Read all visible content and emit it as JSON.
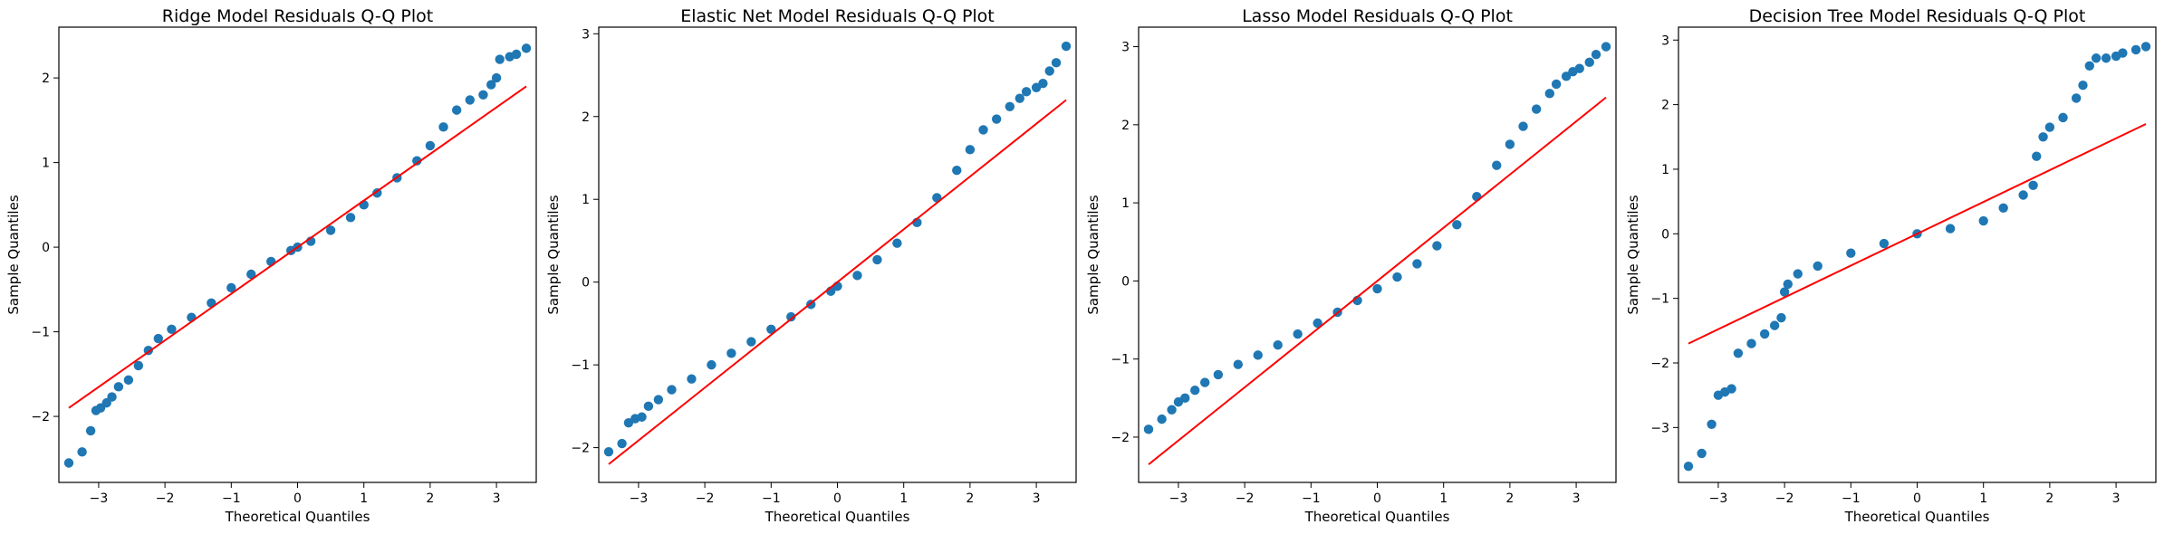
{
  "colors": {
    "points": "#1f77b4",
    "reference_line": "#ff0000",
    "axes": "#000000"
  },
  "chart_data": [
    {
      "type": "scatter",
      "title": "Ridge Model Residuals Q-Q Plot",
      "xlabel": "Theoretical Quantiles",
      "ylabel": "Sample Quantiles",
      "xlim": [
        -3.6,
        3.6
      ],
      "ylim": [
        -2.78,
        2.6
      ],
      "xticks": [
        -3,
        -2,
        -1,
        0,
        1,
        2,
        3
      ],
      "yticks": [
        -2,
        -1,
        0,
        1,
        2
      ],
      "grid": false,
      "reference_line": {
        "x": [
          -3.45,
          3.45
        ],
        "y": [
          -1.9,
          1.9
        ]
      },
      "quantile_points": [
        [
          -3.45,
          -2.55
        ],
        [
          -3.25,
          -2.42
        ],
        [
          -3.12,
          -2.17
        ],
        [
          -3.04,
          -1.93
        ],
        [
          -2.97,
          -1.9
        ],
        [
          -2.88,
          -1.84
        ],
        [
          -2.8,
          -1.77
        ],
        [
          -2.7,
          -1.65
        ],
        [
          -2.55,
          -1.57
        ],
        [
          -2.4,
          -1.4
        ],
        [
          -2.25,
          -1.22
        ],
        [
          -2.1,
          -1.08
        ],
        [
          -1.9,
          -0.97
        ],
        [
          -1.6,
          -0.83
        ],
        [
          -1.3,
          -0.66
        ],
        [
          -1.0,
          -0.48
        ],
        [
          -0.7,
          -0.32
        ],
        [
          -0.4,
          -0.17
        ],
        [
          -0.1,
          -0.04
        ],
        [
          0.0,
          0.0
        ],
        [
          0.2,
          0.07
        ],
        [
          0.5,
          0.2
        ],
        [
          0.8,
          0.35
        ],
        [
          1.0,
          0.5
        ],
        [
          1.2,
          0.64
        ],
        [
          1.5,
          0.82
        ],
        [
          1.8,
          1.02
        ],
        [
          2.0,
          1.2
        ],
        [
          2.2,
          1.42
        ],
        [
          2.4,
          1.62
        ],
        [
          2.6,
          1.74
        ],
        [
          2.8,
          1.8
        ],
        [
          2.92,
          1.92
        ],
        [
          3.0,
          2.0
        ],
        [
          3.05,
          2.22
        ],
        [
          3.2,
          2.25
        ],
        [
          3.3,
          2.28
        ],
        [
          3.45,
          2.35
        ]
      ]
    },
    {
      "type": "scatter",
      "title": "Elastic Net Model Residuals Q-Q Plot",
      "xlabel": "Theoretical Quantiles",
      "ylabel": "Sample Quantiles",
      "xlim": [
        -3.6,
        3.6
      ],
      "ylim": [
        -2.42,
        3.08
      ],
      "xticks": [
        -3,
        -2,
        -1,
        0,
        1,
        2,
        3
      ],
      "yticks": [
        -2,
        -1,
        0,
        1,
        2,
        3
      ],
      "grid": false,
      "reference_line": {
        "x": [
          -3.45,
          3.45
        ],
        "y": [
          -2.2,
          2.2
        ]
      },
      "quantile_points": [
        [
          -3.45,
          -2.05
        ],
        [
          -3.25,
          -1.95
        ],
        [
          -3.15,
          -1.7
        ],
        [
          -3.05,
          -1.65
        ],
        [
          -2.95,
          -1.63
        ],
        [
          -2.85,
          -1.5
        ],
        [
          -2.7,
          -1.42
        ],
        [
          -2.5,
          -1.3
        ],
        [
          -2.2,
          -1.17
        ],
        [
          -1.9,
          -1.0
        ],
        [
          -1.6,
          -0.86
        ],
        [
          -1.3,
          -0.72
        ],
        [
          -1.0,
          -0.57
        ],
        [
          -0.7,
          -0.42
        ],
        [
          -0.4,
          -0.27
        ],
        [
          -0.1,
          -0.11
        ],
        [
          0.0,
          -0.05
        ],
        [
          0.3,
          0.08
        ],
        [
          0.6,
          0.27
        ],
        [
          0.9,
          0.47
        ],
        [
          1.2,
          0.72
        ],
        [
          1.5,
          1.02
        ],
        [
          1.8,
          1.35
        ],
        [
          2.0,
          1.6
        ],
        [
          2.2,
          1.84
        ],
        [
          2.4,
          1.97
        ],
        [
          2.6,
          2.12
        ],
        [
          2.75,
          2.22
        ],
        [
          2.85,
          2.3
        ],
        [
          3.0,
          2.35
        ],
        [
          3.1,
          2.4
        ],
        [
          3.2,
          2.55
        ],
        [
          3.3,
          2.65
        ],
        [
          3.45,
          2.85
        ]
      ]
    },
    {
      "type": "scatter",
      "title": "Lasso Model Residuals Q-Q Plot",
      "xlabel": "Theoretical Quantiles",
      "ylabel": "Sample Quantiles",
      "xlim": [
        -3.6,
        3.6
      ],
      "ylim": [
        -2.58,
        3.25
      ],
      "xticks": [
        -3,
        -2,
        -1,
        0,
        1,
        2,
        3
      ],
      "yticks": [
        -2,
        -1,
        0,
        1,
        2,
        3
      ],
      "grid": false,
      "reference_line": {
        "x": [
          -3.45,
          3.45
        ],
        "y": [
          -2.35,
          2.35
        ]
      },
      "quantile_points": [
        [
          -3.45,
          -1.9
        ],
        [
          -3.25,
          -1.77
        ],
        [
          -3.1,
          -1.65
        ],
        [
          -3.0,
          -1.55
        ],
        [
          -2.9,
          -1.5
        ],
        [
          -2.75,
          -1.4
        ],
        [
          -2.6,
          -1.3
        ],
        [
          -2.4,
          -1.2
        ],
        [
          -2.1,
          -1.07
        ],
        [
          -1.8,
          -0.95
        ],
        [
          -1.5,
          -0.82
        ],
        [
          -1.2,
          -0.68
        ],
        [
          -0.9,
          -0.54
        ],
        [
          -0.6,
          -0.4
        ],
        [
          -0.3,
          -0.25
        ],
        [
          0.0,
          -0.1
        ],
        [
          0.3,
          0.05
        ],
        [
          0.6,
          0.22
        ],
        [
          0.9,
          0.45
        ],
        [
          1.2,
          0.72
        ],
        [
          1.5,
          1.08
        ],
        [
          1.8,
          1.48
        ],
        [
          2.0,
          1.75
        ],
        [
          2.2,
          1.98
        ],
        [
          2.4,
          2.2
        ],
        [
          2.6,
          2.4
        ],
        [
          2.7,
          2.52
        ],
        [
          2.85,
          2.62
        ],
        [
          2.95,
          2.68
        ],
        [
          3.05,
          2.72
        ],
        [
          3.2,
          2.8
        ],
        [
          3.3,
          2.9
        ],
        [
          3.45,
          3.0
        ]
      ]
    },
    {
      "type": "scatter",
      "title": "Decision Tree Model Residuals Q-Q Plot",
      "xlabel": "Theoretical Quantiles",
      "ylabel": "Sample Quantiles",
      "xlim": [
        -3.6,
        3.6
      ],
      "ylim": [
        -3.85,
        3.2
      ],
      "xticks": [
        -3,
        -2,
        -1,
        0,
        1,
        2,
        3
      ],
      "yticks": [
        -3,
        -2,
        -1,
        0,
        1,
        2,
        3
      ],
      "grid": false,
      "reference_line": {
        "x": [
          -3.45,
          3.45
        ],
        "y": [
          -1.7,
          1.7
        ]
      },
      "quantile_points": [
        [
          -3.45,
          -3.6
        ],
        [
          -3.25,
          -3.4
        ],
        [
          -3.1,
          -2.95
        ],
        [
          -3.0,
          -2.5
        ],
        [
          -2.9,
          -2.45
        ],
        [
          -2.8,
          -2.4
        ],
        [
          -2.7,
          -1.85
        ],
        [
          -2.5,
          -1.7
        ],
        [
          -2.3,
          -1.55
        ],
        [
          -2.15,
          -1.42
        ],
        [
          -2.05,
          -1.3
        ],
        [
          -2.0,
          -0.9
        ],
        [
          -1.95,
          -0.78
        ],
        [
          -1.8,
          -0.62
        ],
        [
          -1.5,
          -0.5
        ],
        [
          -1.0,
          -0.3
        ],
        [
          -0.5,
          -0.15
        ],
        [
          0.0,
          0.0
        ],
        [
          0.5,
          0.08
        ],
        [
          1.0,
          0.2
        ],
        [
          1.3,
          0.4
        ],
        [
          1.6,
          0.6
        ],
        [
          1.75,
          0.75
        ],
        [
          1.8,
          1.2
        ],
        [
          1.9,
          1.5
        ],
        [
          2.0,
          1.65
        ],
        [
          2.2,
          1.8
        ],
        [
          2.4,
          2.1
        ],
        [
          2.5,
          2.3
        ],
        [
          2.6,
          2.6
        ],
        [
          2.7,
          2.72
        ],
        [
          2.85,
          2.72
        ],
        [
          3.0,
          2.75
        ],
        [
          3.1,
          2.8
        ],
        [
          3.3,
          2.85
        ],
        [
          3.45,
          2.9
        ]
      ]
    }
  ]
}
